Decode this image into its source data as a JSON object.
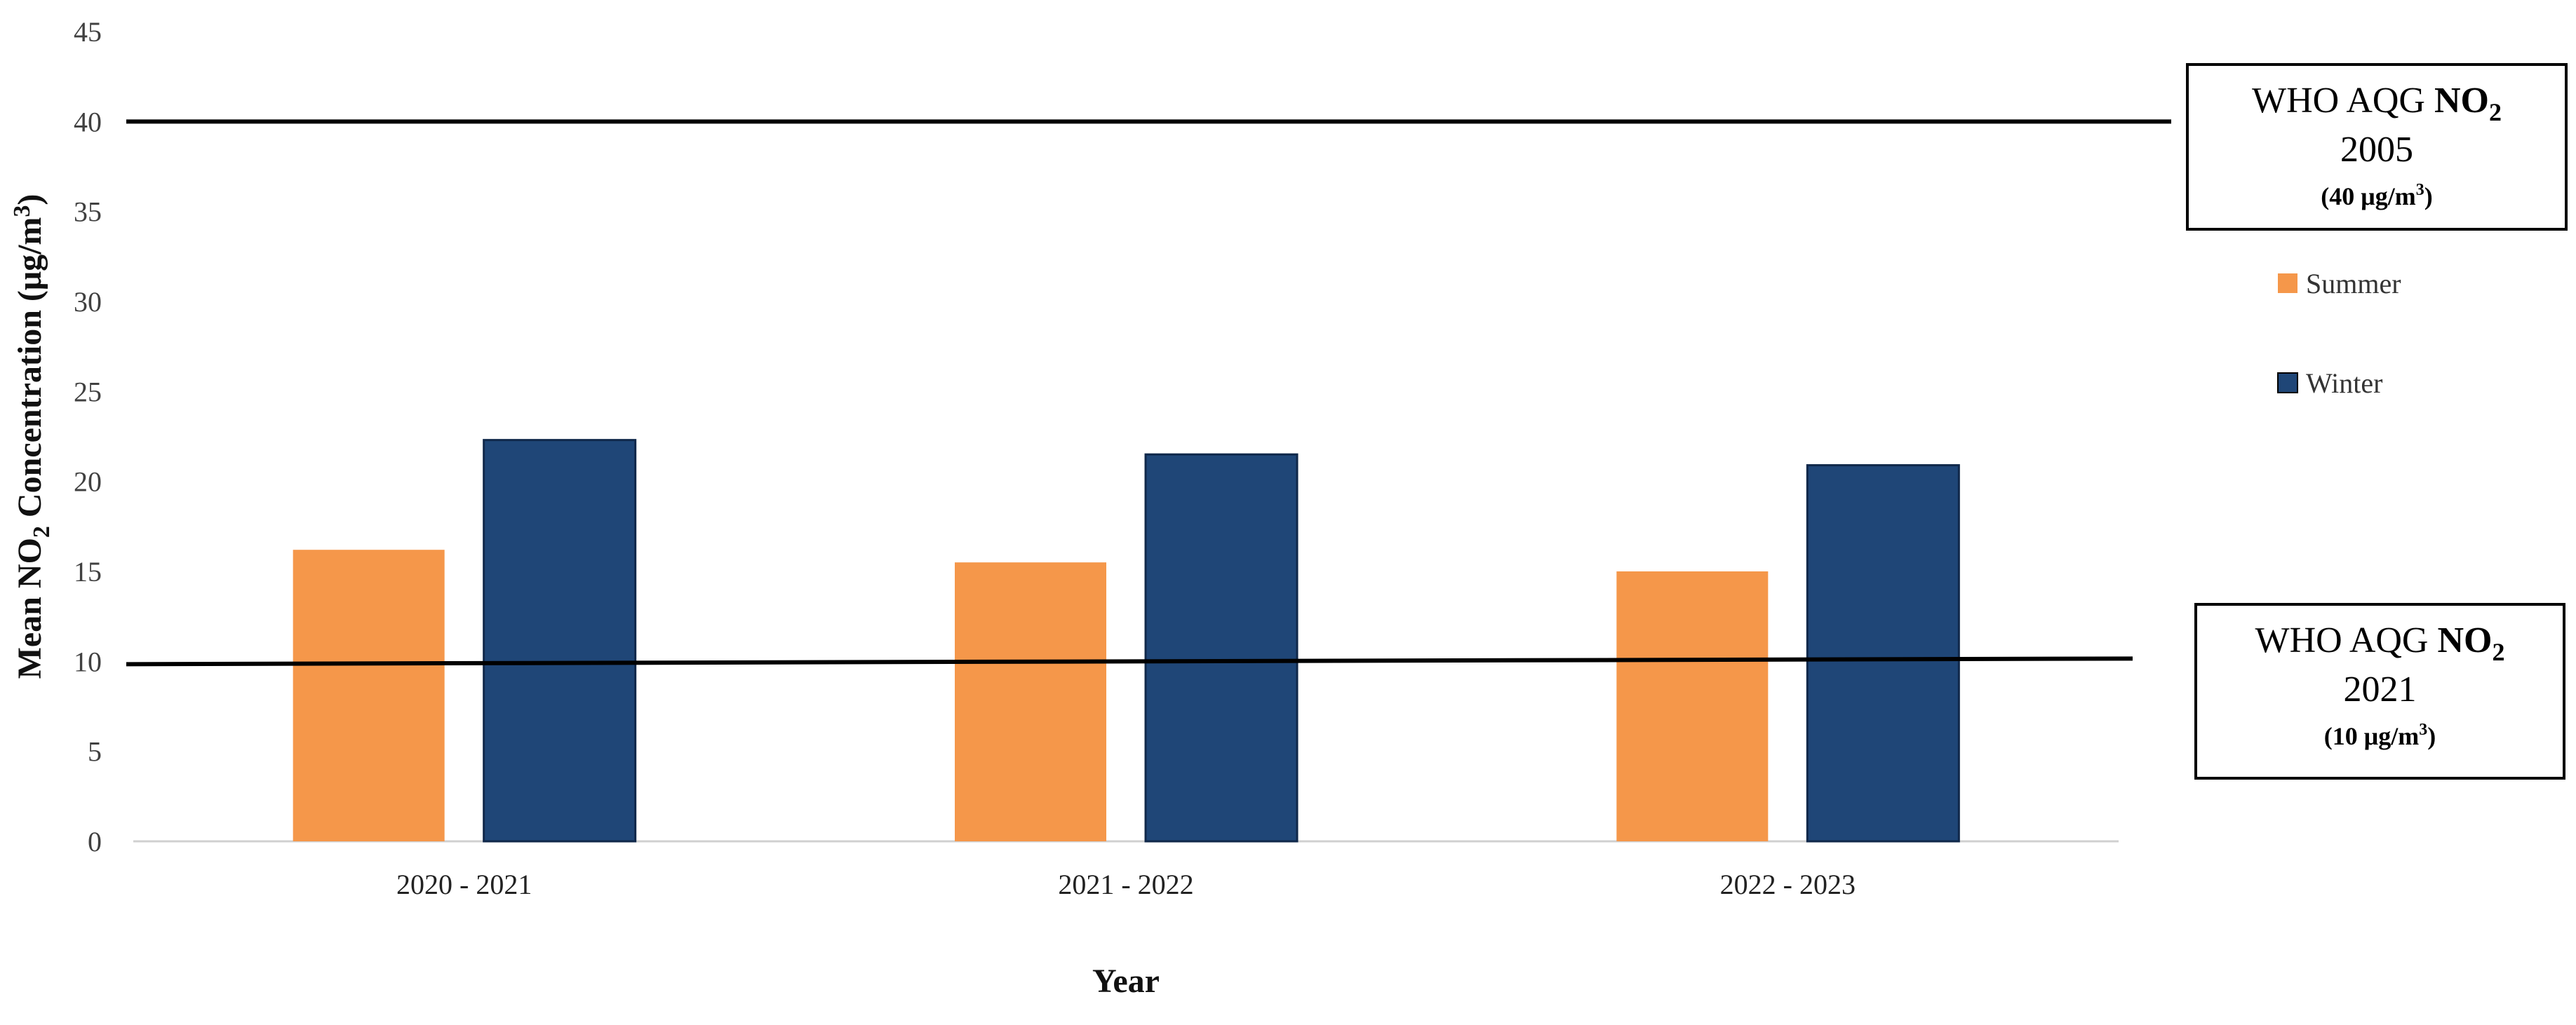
{
  "chart_data": {
    "type": "bar",
    "categories": [
      "2020 - 2021",
      "2021 - 2022",
      "2022 - 2023"
    ],
    "series": [
      {
        "name": "Summer",
        "values": [
          16.2,
          15.5,
          15.0
        ],
        "color": "#F5974A"
      },
      {
        "name": "Winter",
        "values": [
          22.3,
          21.5,
          20.9
        ],
        "color": "#1F4677"
      }
    ],
    "xlabel": "Year",
    "ylabel": {
      "prefix": "Mean NO",
      "sub": "2",
      "mid": " Concentration (μg/m",
      "sup": "3",
      "suffix": ")"
    },
    "ylim": [
      0,
      45
    ],
    "yticks": [
      "0",
      "5",
      "10",
      "15",
      "20",
      "25",
      "30",
      "35",
      "40",
      "45"
    ],
    "legend_position": "right",
    "grid": false,
    "reference_lines": [
      {
        "value": 40,
        "label_main": "WHO AQG ",
        "label_bold": "NO",
        "label_sub": "2",
        "year": "2005",
        "value_label_pre": "(40 μg/m",
        "value_label_sup": "3",
        "value_label_post": ")"
      },
      {
        "value": 10,
        "label_main": "WHO AQG ",
        "label_bold": "NO",
        "label_sub": "2",
        "year": "2021",
        "value_label_pre": "(10 μg/m",
        "value_label_sup": "3",
        "value_label_post": ")"
      }
    ]
  }
}
